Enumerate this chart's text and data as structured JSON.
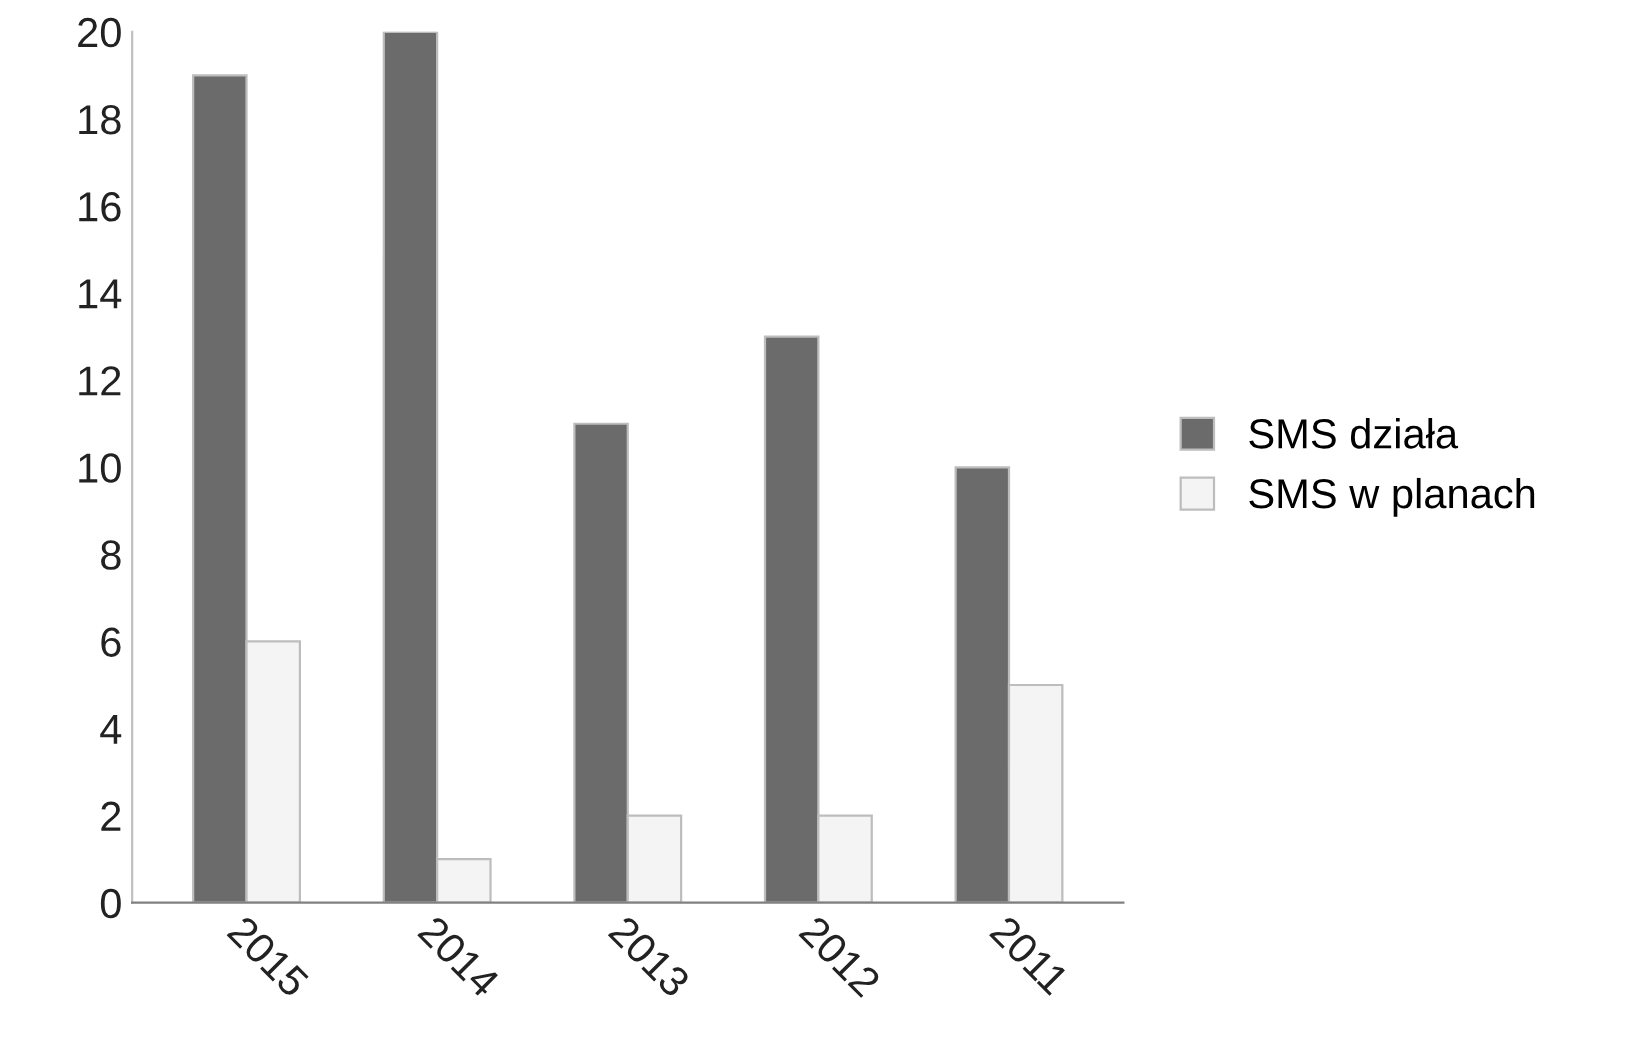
{
  "chart_data": {
    "type": "bar",
    "categories": [
      "2015",
      "2014",
      "2013",
      "2012",
      "2011"
    ],
    "series": [
      {
        "name": "SMS działa",
        "color": "#6b6b6b",
        "values": [
          19,
          20,
          11,
          13,
          10
        ]
      },
      {
        "name": "SMS w planach",
        "color": "#f4f4f4",
        "values": [
          6,
          1,
          2,
          2,
          5
        ]
      }
    ],
    "ylim": [
      0,
      20
    ],
    "yticks": [
      0,
      2,
      4,
      6,
      8,
      10,
      12,
      14,
      16,
      18,
      20
    ],
    "grid": false,
    "legend": "right"
  }
}
